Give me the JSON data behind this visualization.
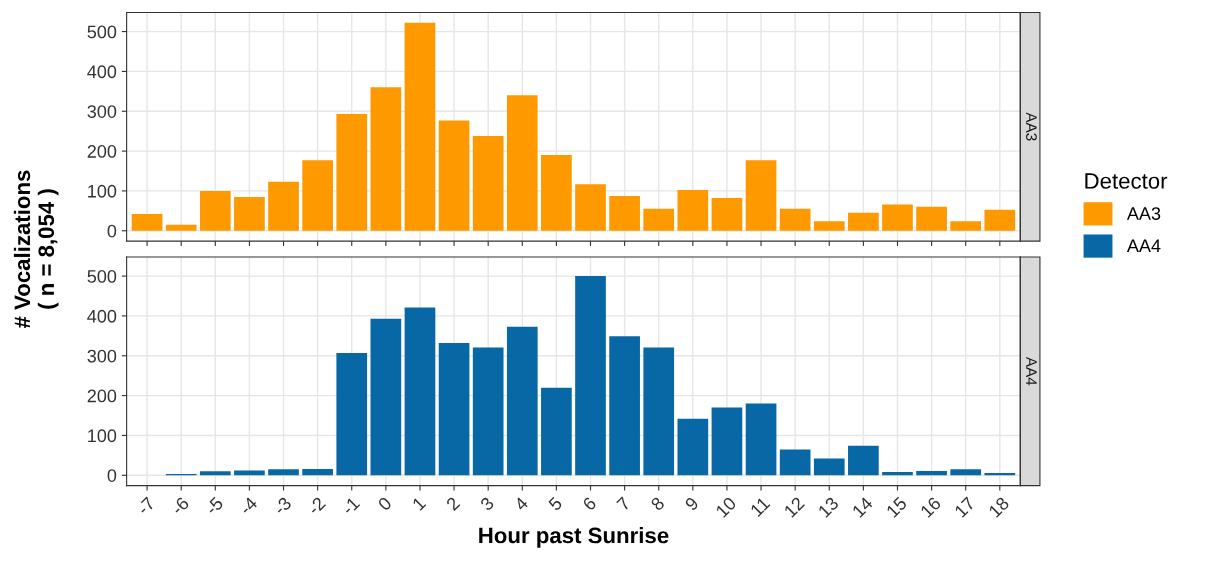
{
  "chart_data": [
    {
      "type": "bar",
      "title": "AA3",
      "ylabel": "# Vocalizations\n( n = 8,054 )",
      "legend_title": "Detector",
      "legend": "right",
      "categories": [
        "-7",
        "-6",
        "-5",
        "-4",
        "-3",
        "-2",
        "-1",
        "0",
        "1",
        "2",
        "3",
        "4",
        "5",
        "6",
        "7",
        "8",
        "9",
        "10",
        "11",
        "12",
        "13",
        "14",
        "15",
        "16",
        "17",
        "18"
      ],
      "series": [
        {
          "name": "AA3",
          "color": "#ff9900",
          "values": [
            42,
            15,
            100,
            85,
            123,
            177,
            293,
            360,
            522,
            277,
            238,
            340,
            190,
            117,
            87,
            55,
            102,
            82,
            177,
            55,
            24,
            45,
            66,
            60,
            24,
            53
          ]
        }
      ],
      "ylim": [
        -26,
        548
      ],
      "yticks": [
        0,
        100,
        200,
        300,
        400,
        500
      ],
      "grid": true,
      "tick_labels": "y"
    },
    {
      "type": "bar",
      "title": "AA4",
      "xlabel": "Hour past Sunrise",
      "legend": "right",
      "categories": [
        "-7",
        "-6",
        "-5",
        "-4",
        "-3",
        "-2",
        "-1",
        "0",
        "1",
        "2",
        "3",
        "4",
        "5",
        "6",
        "7",
        "8",
        "9",
        "10",
        "11",
        "12",
        "13",
        "14",
        "15",
        "16",
        "17",
        "18"
      ],
      "series": [
        {
          "name": "AA4",
          "color": "#0868a6",
          "values": [
            0,
            3,
            10,
            12,
            15,
            16,
            307,
            393,
            421,
            332,
            321,
            373,
            220,
            500,
            349,
            321,
            142,
            170,
            180,
            65,
            42,
            74,
            8,
            11,
            15,
            6
          ]
        }
      ],
      "ylim": [
        -26,
        548
      ],
      "yticks": [
        0,
        100,
        200,
        300,
        400,
        500
      ],
      "grid": true
    }
  ]
}
